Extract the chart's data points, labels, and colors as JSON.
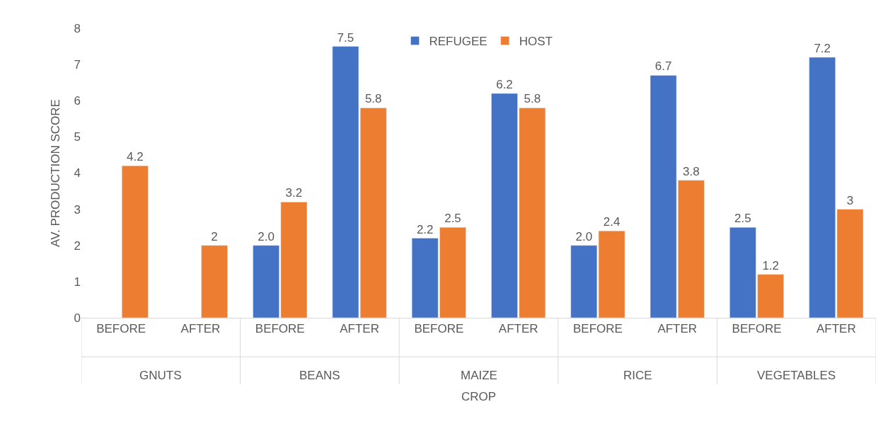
{
  "chart_data": {
    "type": "bar",
    "xlabel": "CROP",
    "ylabel": "AV. PRODUCTION SCORE",
    "categories": [
      "BEFORE",
      "AFTER",
      "BEFORE",
      "AFTER",
      "BEFORE",
      "AFTER",
      "BEFORE",
      "AFTER",
      "BEFORE",
      "AFTER"
    ],
    "annotations": [
      "GNUTS",
      "BEANS",
      "MAIZE",
      "RICE",
      "VEGETABLES"
    ],
    "series": [
      {
        "name": "REFUGEE",
        "color": "#4472c4",
        "values": [
          null,
          null,
          2.0,
          7.5,
          2.2,
          6.2,
          2.0,
          6.7,
          2.5,
          7.2
        ],
        "value_labels": [
          null,
          null,
          "2.0",
          "7.5",
          "2.2",
          "6.2",
          "2.0",
          "6.7",
          "2.5",
          "7.2"
        ]
      },
      {
        "name": "HOST",
        "color": "#ed7d31",
        "values": [
          4.2,
          2,
          3.2,
          5.8,
          2.5,
          5.8,
          2.4,
          3.8,
          1.2,
          3
        ],
        "value_labels": [
          "4.2",
          "2",
          "3.2",
          "5.8",
          "2.5",
          "5.8",
          "2.4",
          "3.8",
          "1.2",
          "3"
        ]
      }
    ],
    "ylim": [
      0,
      8
    ],
    "yticks": [
      0,
      1,
      2,
      3,
      4,
      5,
      6,
      7,
      8
    ],
    "legend": "top"
  }
}
